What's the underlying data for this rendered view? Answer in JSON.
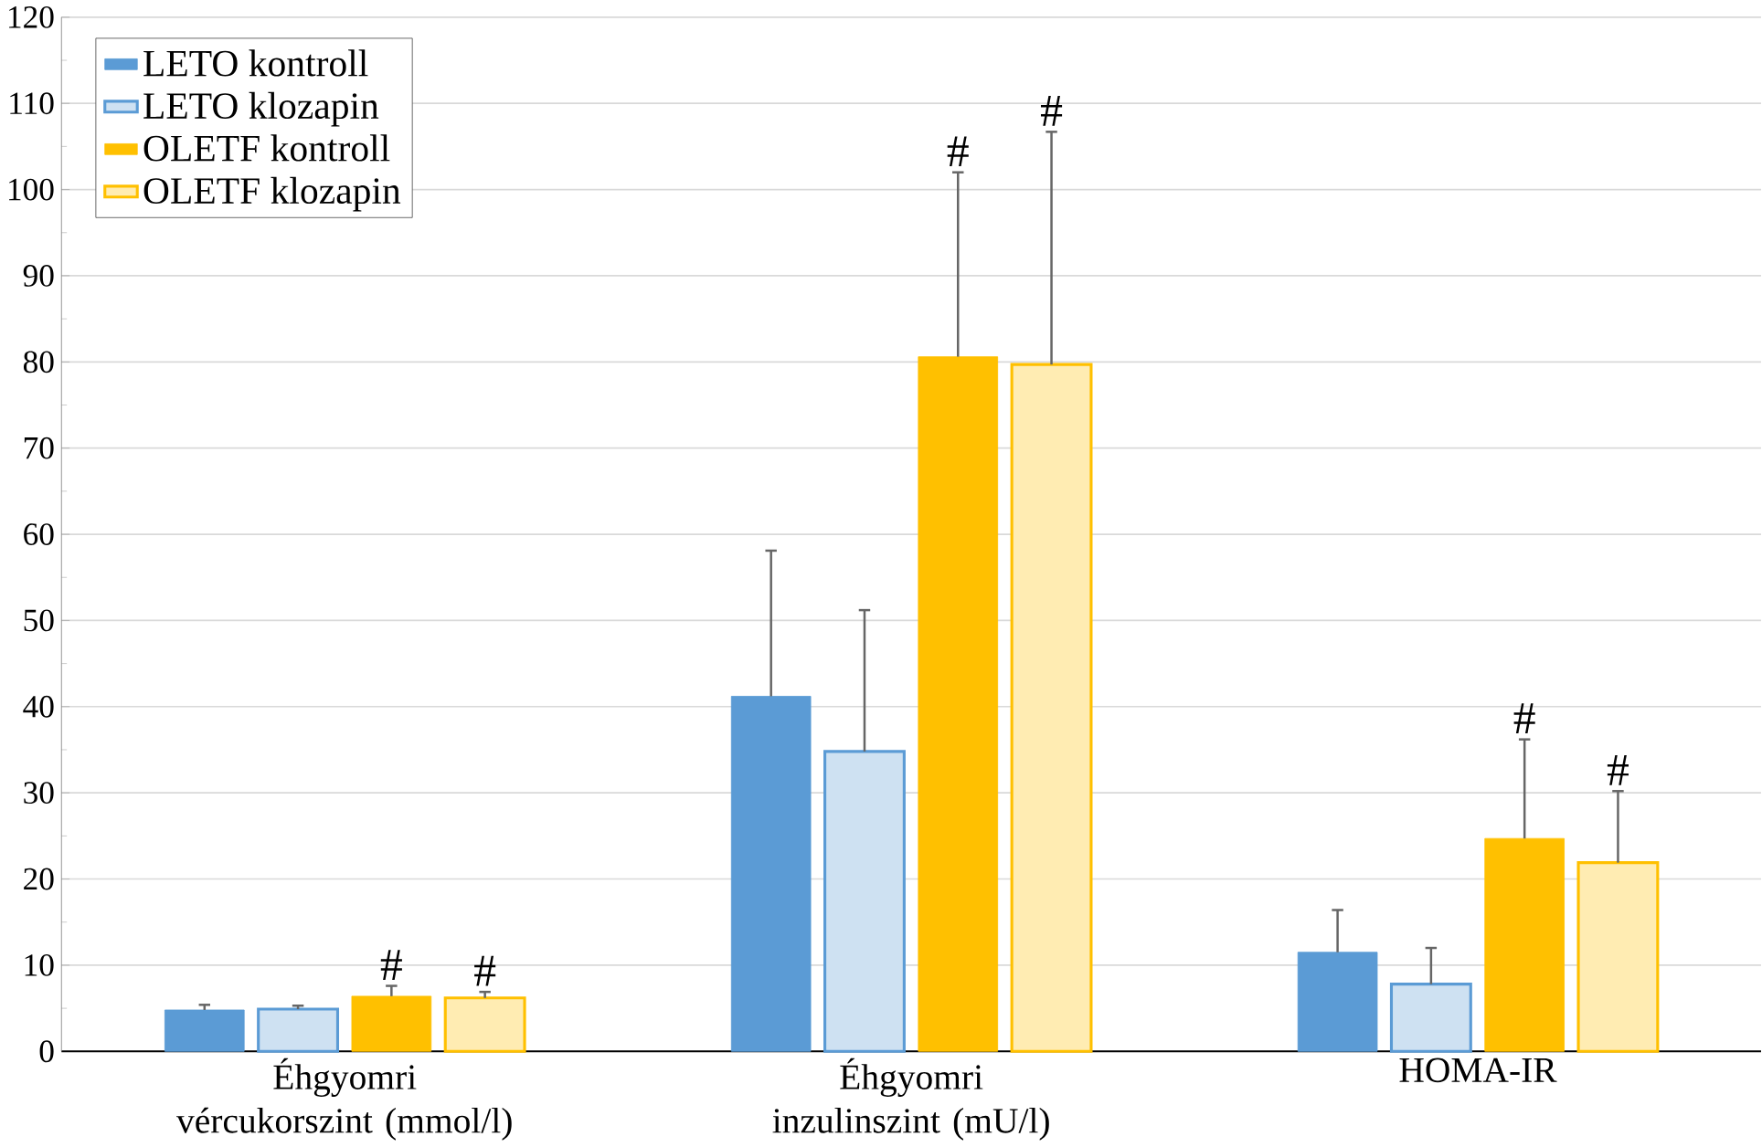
{
  "chart_data": {
    "type": "bar",
    "categories": [
      "Éhgyomri vércukorszint (mmol/l)",
      "Éhgyomri inzulinszint (mU/l)",
      "HOMA-IR"
    ],
    "series": [
      {
        "name": "LETO kontroll",
        "color": "#5b9bd5",
        "values": [
          4.8,
          41.2,
          11.5
        ],
        "errors": [
          [
            4.8,
            5.4
          ],
          [
            41.2,
            58.1
          ],
          [
            11.5,
            16.4
          ]
        ]
      },
      {
        "name": "LETO klozapin",
        "color": "#5b9bd5",
        "values": [
          4.9,
          34.8,
          7.8
        ],
        "errors": [
          [
            4.9,
            5.3
          ],
          [
            34.8,
            51.2
          ],
          [
            7.8,
            12
          ]
        ]
      },
      {
        "name": "OLETF kontroll",
        "color": "#ffc000",
        "values": [
          6.4,
          80.6,
          24.7
        ],
        "errors": [
          [
            6.4,
            7.6
          ],
          [
            80.6,
            102
          ],
          [
            24.7,
            36.2
          ]
        ]
      },
      {
        "name": "OLETF klozapin",
        "color": "#ffc000",
        "values": [
          6.2,
          79.7,
          21.9
        ],
        "errors": [
          [
            6.2,
            6.9
          ],
          [
            79.7,
            106.7
          ],
          [
            21.9,
            30.2
          ]
        ]
      }
    ],
    "ylim": [
      0,
      120
    ],
    "yticks": [
      0,
      10,
      20,
      30,
      40,
      50,
      60,
      70,
      80,
      90,
      100,
      110,
      120
    ],
    "grid": "y",
    "legend": "top left",
    "annotations": [
      "#",
      "#",
      "#",
      "#",
      "#",
      "#"
    ]
  }
}
